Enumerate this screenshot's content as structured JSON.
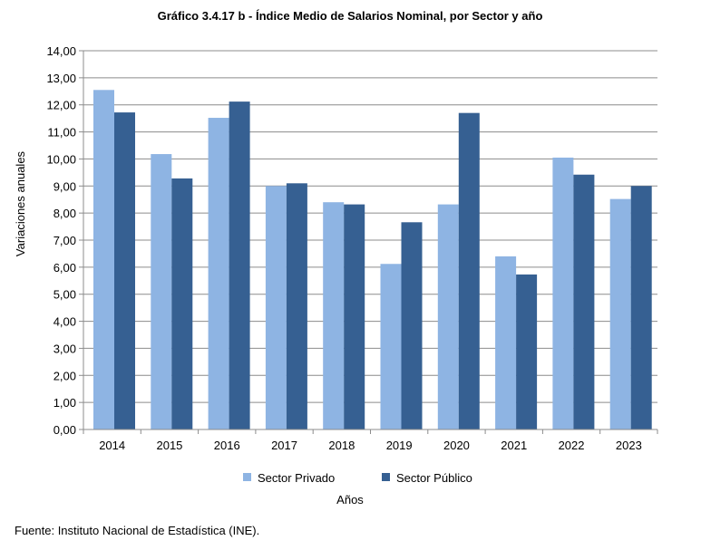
{
  "chart_data": {
    "type": "bar",
    "title": "Gráfico 3.4.17 b - Índice Medio de Salarios Nominal,  por Sector y año",
    "xlabel": "Años",
    "ylabel": "Variaciones  anuales",
    "ylim": [
      0,
      14
    ],
    "ytick_step": 1,
    "ytick_labels": [
      "0,00",
      "1,00",
      "2,00",
      "3,00",
      "4,00",
      "5,00",
      "6,00",
      "7,00",
      "8,00",
      "9,00",
      "10,00",
      "11,00",
      "12,00",
      "13,00",
      "14,00"
    ],
    "grid": true,
    "legend_position": "bottom",
    "categories": [
      "2014",
      "2015",
      "2016",
      "2017",
      "2018",
      "2019",
      "2020",
      "2021",
      "2022",
      "2023"
    ],
    "series": [
      {
        "name": "Sector Privado",
        "color": "#8EB4E3",
        "values": [
          12.55,
          10.18,
          11.52,
          9.0,
          8.4,
          6.12,
          8.32,
          6.4,
          10.05,
          8.52
        ]
      },
      {
        "name": "Sector Público",
        "color": "#366092",
        "values": [
          11.72,
          9.28,
          12.12,
          9.1,
          8.32,
          7.66,
          11.7,
          5.73,
          9.42,
          9.0
        ]
      }
    ],
    "source": "Fuente: Instituto Nacional de Estadística (INE)."
  }
}
